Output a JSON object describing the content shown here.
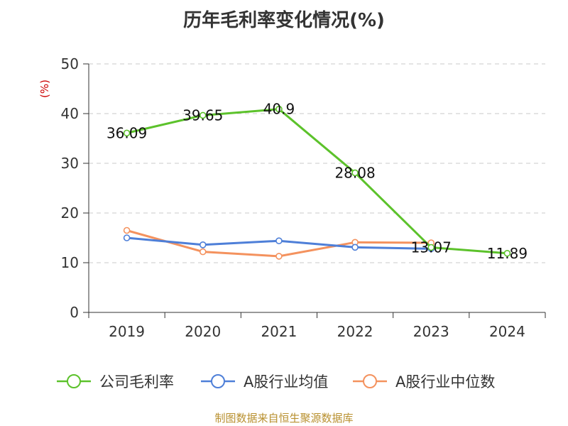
{
  "title": "历年毛利率变化情况(%)",
  "source": "制图数据来自恒生聚源数据库",
  "chart_data": {
    "type": "line",
    "title": "历年毛利率变化情况(%)",
    "ylabel": "(%)",
    "xlabel": "",
    "categories": [
      "2019",
      "2020",
      "2021",
      "2022",
      "2023",
      "2024"
    ],
    "ylim": [
      0,
      50
    ],
    "yticks": [
      0,
      10,
      20,
      30,
      40,
      50
    ],
    "grid": true,
    "legend_position": "bottom",
    "series": [
      {
        "name": "公司毛利率",
        "color": "#5cc22b",
        "values": [
          36.09,
          39.65,
          40.9,
          28.08,
          13.07,
          11.89
        ],
        "labels": [
          "36.09",
          "39.65",
          "40.9",
          "28.08",
          "13.07",
          "11.89"
        ]
      },
      {
        "name": "A股行业均值",
        "color": "#4e7fd8",
        "values": [
          15.0,
          13.6,
          14.4,
          13.1,
          12.8,
          null
        ]
      },
      {
        "name": "A股行业中位数",
        "color": "#f4925e",
        "values": [
          16.5,
          12.2,
          11.3,
          14.1,
          14.0,
          null
        ]
      }
    ]
  }
}
